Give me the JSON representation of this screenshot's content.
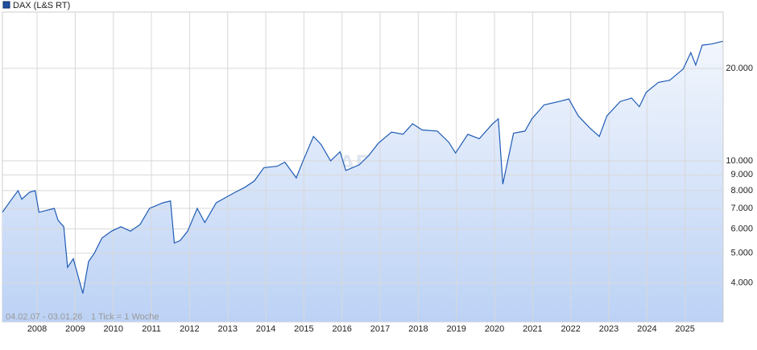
{
  "chart_data": {
    "type": "line",
    "legend": "DAX (L&S RT)",
    "date_range": "04.02.07 - 03.01.26",
    "tick_note": "1 Tick = 1 Woche",
    "log_scale": true,
    "grid": true,
    "xlim": [
      2007.09,
      2026.0
    ],
    "xticks": [
      2008,
      2009,
      2010,
      2011,
      2012,
      2013,
      2014,
      2015,
      2016,
      2017,
      2018,
      2019,
      2020,
      2021,
      2022,
      2023,
      2024,
      2025
    ],
    "ylim": [
      2990,
      30500
    ],
    "yticks": [
      {
        "value": 4000,
        "label": "4.000"
      },
      {
        "value": 5000,
        "label": "5.000"
      },
      {
        "value": 6000,
        "label": "6.000"
      },
      {
        "value": 7000,
        "label": "7.000"
      },
      {
        "value": 8000,
        "label": "8.000"
      },
      {
        "value": 9000,
        "label": "9.000"
      },
      {
        "value": 10000,
        "label": "10.000"
      },
      {
        "value": 20000,
        "label": "20.000"
      }
    ],
    "series": [
      {
        "name": "DAX (L&S RT)",
        "color": "#1f5bb5",
        "x": [
          2007.09,
          2007.3,
          2007.5,
          2007.6,
          2007.8,
          2007.95,
          2008.05,
          2008.25,
          2008.45,
          2008.55,
          2008.7,
          2008.8,
          2008.95,
          2009.2,
          2009.35,
          2009.5,
          2009.7,
          2009.95,
          2010.2,
          2010.45,
          2010.7,
          2010.95,
          2011.3,
          2011.5,
          2011.6,
          2011.75,
          2011.95,
          2012.2,
          2012.4,
          2012.7,
          2012.95,
          2013.2,
          2013.45,
          2013.7,
          2013.95,
          2014.3,
          2014.5,
          2014.8,
          2014.95,
          2015.25,
          2015.45,
          2015.7,
          2015.95,
          2016.1,
          2016.45,
          2016.7,
          2016.95,
          2017.3,
          2017.6,
          2017.85,
          2018.1,
          2018.5,
          2018.8,
          2018.98,
          2019.3,
          2019.6,
          2019.95,
          2020.1,
          2020.22,
          2020.5,
          2020.8,
          2020.98,
          2021.3,
          2021.7,
          2021.95,
          2022.2,
          2022.5,
          2022.75,
          2022.95,
          2023.3,
          2023.6,
          2023.8,
          2023.98,
          2024.3,
          2024.6,
          2024.95,
          2025.15,
          2025.28,
          2025.45,
          2025.7,
          2025.99
        ],
        "values": [
          6800,
          7400,
          8000,
          7500,
          7900,
          8000,
          6800,
          6900,
          7000,
          6400,
          6100,
          4500,
          4800,
          3700,
          4700,
          5000,
          5600,
          5900,
          6100,
          5900,
          6200,
          7000,
          7300,
          7400,
          5400,
          5500,
          5900,
          7000,
          6300,
          7300,
          7600,
          7900,
          8200,
          8600,
          9500,
          9600,
          9900,
          8800,
          9800,
          12000,
          11300,
          10000,
          10700,
          9300,
          9700,
          10400,
          11400,
          12400,
          12200,
          13200,
          12600,
          12500,
          11500,
          10600,
          12200,
          11800,
          13200,
          13700,
          8400,
          12300,
          12500,
          13700,
          15200,
          15600,
          15900,
          14000,
          12800,
          12000,
          14000,
          15600,
          16000,
          15000,
          16700,
          18000,
          18300,
          19900,
          22500,
          20500,
          23800,
          24000,
          24500
        ]
      }
    ]
  }
}
